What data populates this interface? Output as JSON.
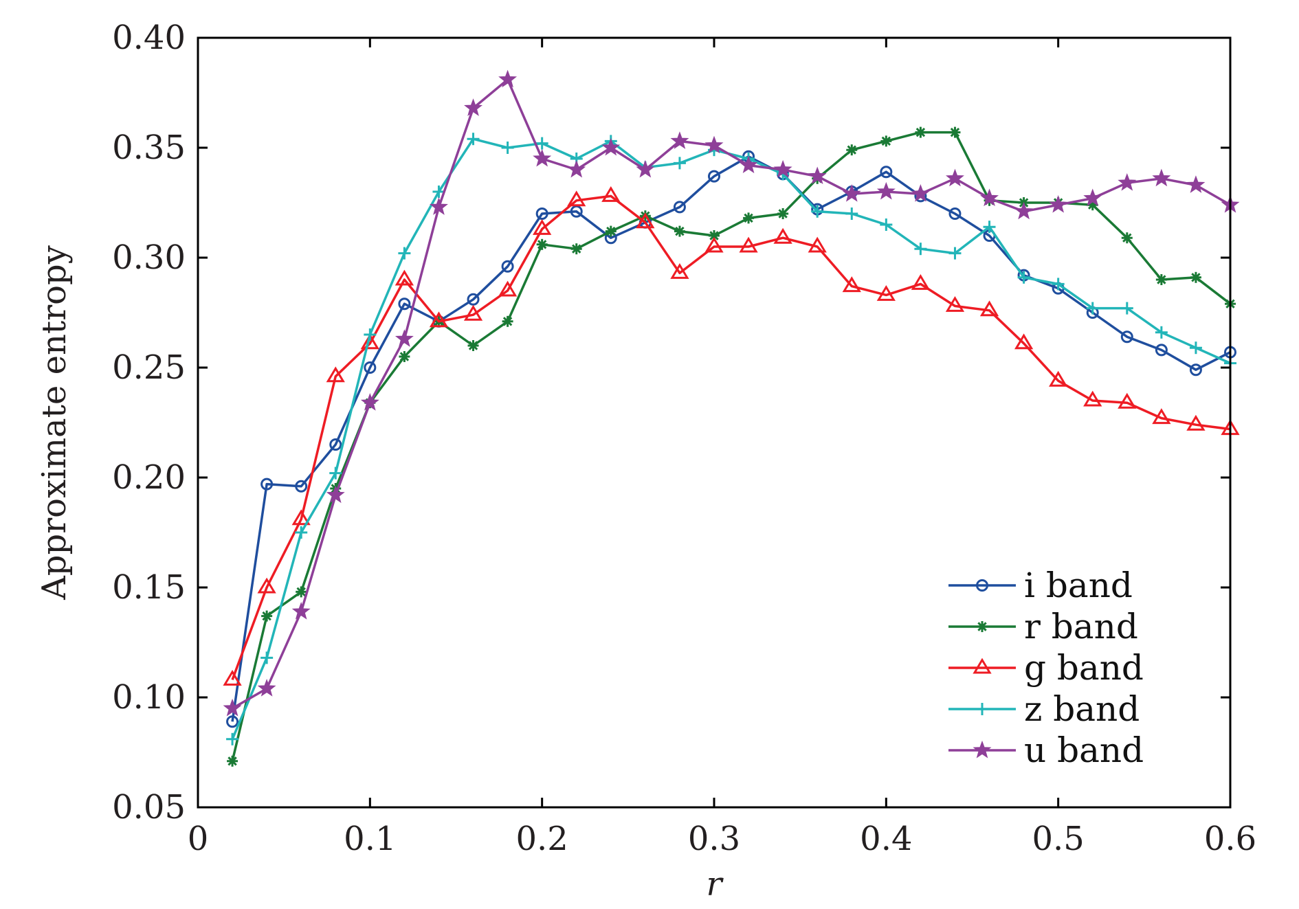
{
  "chart_data": {
    "type": "line",
    "title": "",
    "xlabel": "r",
    "ylabel": "Approximate entropy",
    "xlim": [
      0,
      0.6
    ],
    "ylim": [
      0.05,
      0.4
    ],
    "x_ticks": [
      "0",
      "0.1",
      "0.2",
      "0.3",
      "0.4",
      "0.5",
      "0.6"
    ],
    "y_ticks": [
      "0.05",
      "0.10",
      "0.15",
      "0.20",
      "0.25",
      "0.30",
      "0.35",
      "0.40"
    ],
    "grid": false,
    "legend_position": "lower-right",
    "x": [
      0.02,
      0.04,
      0.06,
      0.08,
      0.1,
      0.12,
      0.14,
      0.16,
      0.18,
      0.2,
      0.22,
      0.24,
      0.26,
      0.28,
      0.3,
      0.32,
      0.34,
      0.36,
      0.38,
      0.4,
      0.42,
      0.44,
      0.46,
      0.48,
      0.5,
      0.52,
      0.54,
      0.56,
      0.58,
      0.6
    ],
    "series": [
      {
        "name": "i band",
        "color": "#1f4e9e",
        "marker": "circle",
        "values": [
          0.089,
          0.197,
          0.196,
          0.215,
          0.25,
          0.279,
          0.271,
          0.281,
          0.296,
          0.32,
          0.321,
          0.309,
          0.316,
          0.323,
          0.337,
          0.346,
          0.338,
          0.322,
          0.33,
          0.339,
          0.328,
          0.32,
          0.31,
          0.292,
          0.286,
          0.275,
          0.264,
          0.258,
          0.249,
          0.257
        ]
      },
      {
        "name": "r band",
        "color": "#1a7a35",
        "marker": "asterisk",
        "values": [
          0.071,
          0.137,
          0.148,
          0.195,
          0.234,
          0.255,
          0.271,
          0.26,
          0.271,
          0.306,
          0.304,
          0.312,
          0.319,
          0.312,
          0.31,
          0.318,
          0.32,
          0.336,
          0.349,
          0.353,
          0.357,
          0.357,
          0.326,
          0.325,
          0.325,
          0.324,
          0.309,
          0.29,
          0.291,
          0.279
        ]
      },
      {
        "name": "g band",
        "color": "#ee1c24",
        "marker": "triangle",
        "values": [
          0.108,
          0.15,
          0.181,
          0.246,
          0.261,
          0.29,
          0.271,
          0.274,
          0.285,
          0.313,
          0.326,
          0.328,
          0.316,
          0.293,
          0.305,
          0.305,
          0.309,
          0.305,
          0.287,
          0.283,
          0.288,
          0.278,
          0.276,
          0.261,
          0.244,
          0.235,
          0.234,
          0.227,
          0.224,
          0.222
        ]
      },
      {
        "name": "z band",
        "color": "#22b5b8",
        "marker": "plus",
        "values": [
          0.081,
          0.118,
          0.175,
          0.202,
          0.265,
          0.302,
          0.33,
          0.354,
          0.35,
          0.352,
          0.345,
          0.353,
          0.341,
          0.343,
          0.349,
          0.345,
          0.338,
          0.321,
          0.32,
          0.315,
          0.304,
          0.302,
          0.314,
          0.291,
          0.288,
          0.277,
          0.277,
          0.266,
          0.259,
          0.252
        ]
      },
      {
        "name": "u band",
        "color": "#8e3f98",
        "marker": "star",
        "values": [
          0.095,
          0.104,
          0.139,
          0.192,
          0.234,
          0.263,
          0.323,
          0.368,
          0.381,
          0.345,
          0.34,
          0.35,
          0.34,
          0.353,
          0.351,
          0.342,
          0.34,
          0.337,
          0.329,
          0.33,
          0.329,
          0.336,
          0.327,
          0.321,
          0.324,
          0.327,
          0.334,
          0.336,
          0.333,
          0.324
        ]
      }
    ]
  }
}
